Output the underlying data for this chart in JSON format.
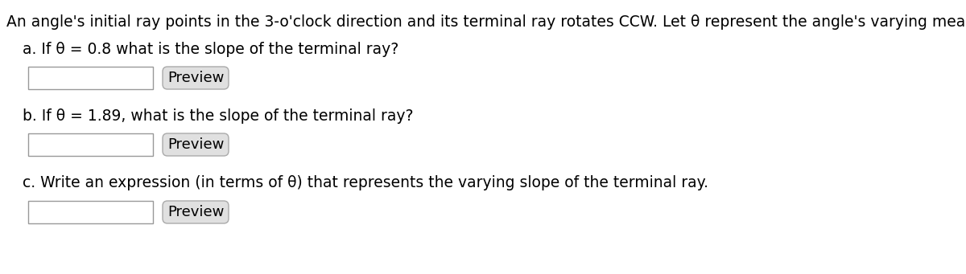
{
  "bg_color": "#ffffff",
  "header": "An angle's initial ray points in the 3-o'clock direction and its terminal ray rotates CCW. Let θ represent the angle's varying measure (in radians).",
  "parts": [
    "a. If θ = 0.8 what is the slope of the terminal ray?",
    "b. If θ = 1.89, what is the slope of the terminal ray?",
    "c. Write an expression (in terms of θ) that represents the varying slope of the terminal ray."
  ],
  "preview_label": "Preview",
  "text_color": "#000000",
  "header_fontsize": 13.5,
  "part_fontsize": 13.5,
  "preview_fontsize": 13.0,
  "input_box": {
    "facecolor": "#ffffff",
    "edgecolor": "#999999",
    "linewidth": 1.0
  },
  "preview_box": {
    "facecolor": "#e0e0e0",
    "edgecolor": "#aaaaaa",
    "linewidth": 1.0
  }
}
